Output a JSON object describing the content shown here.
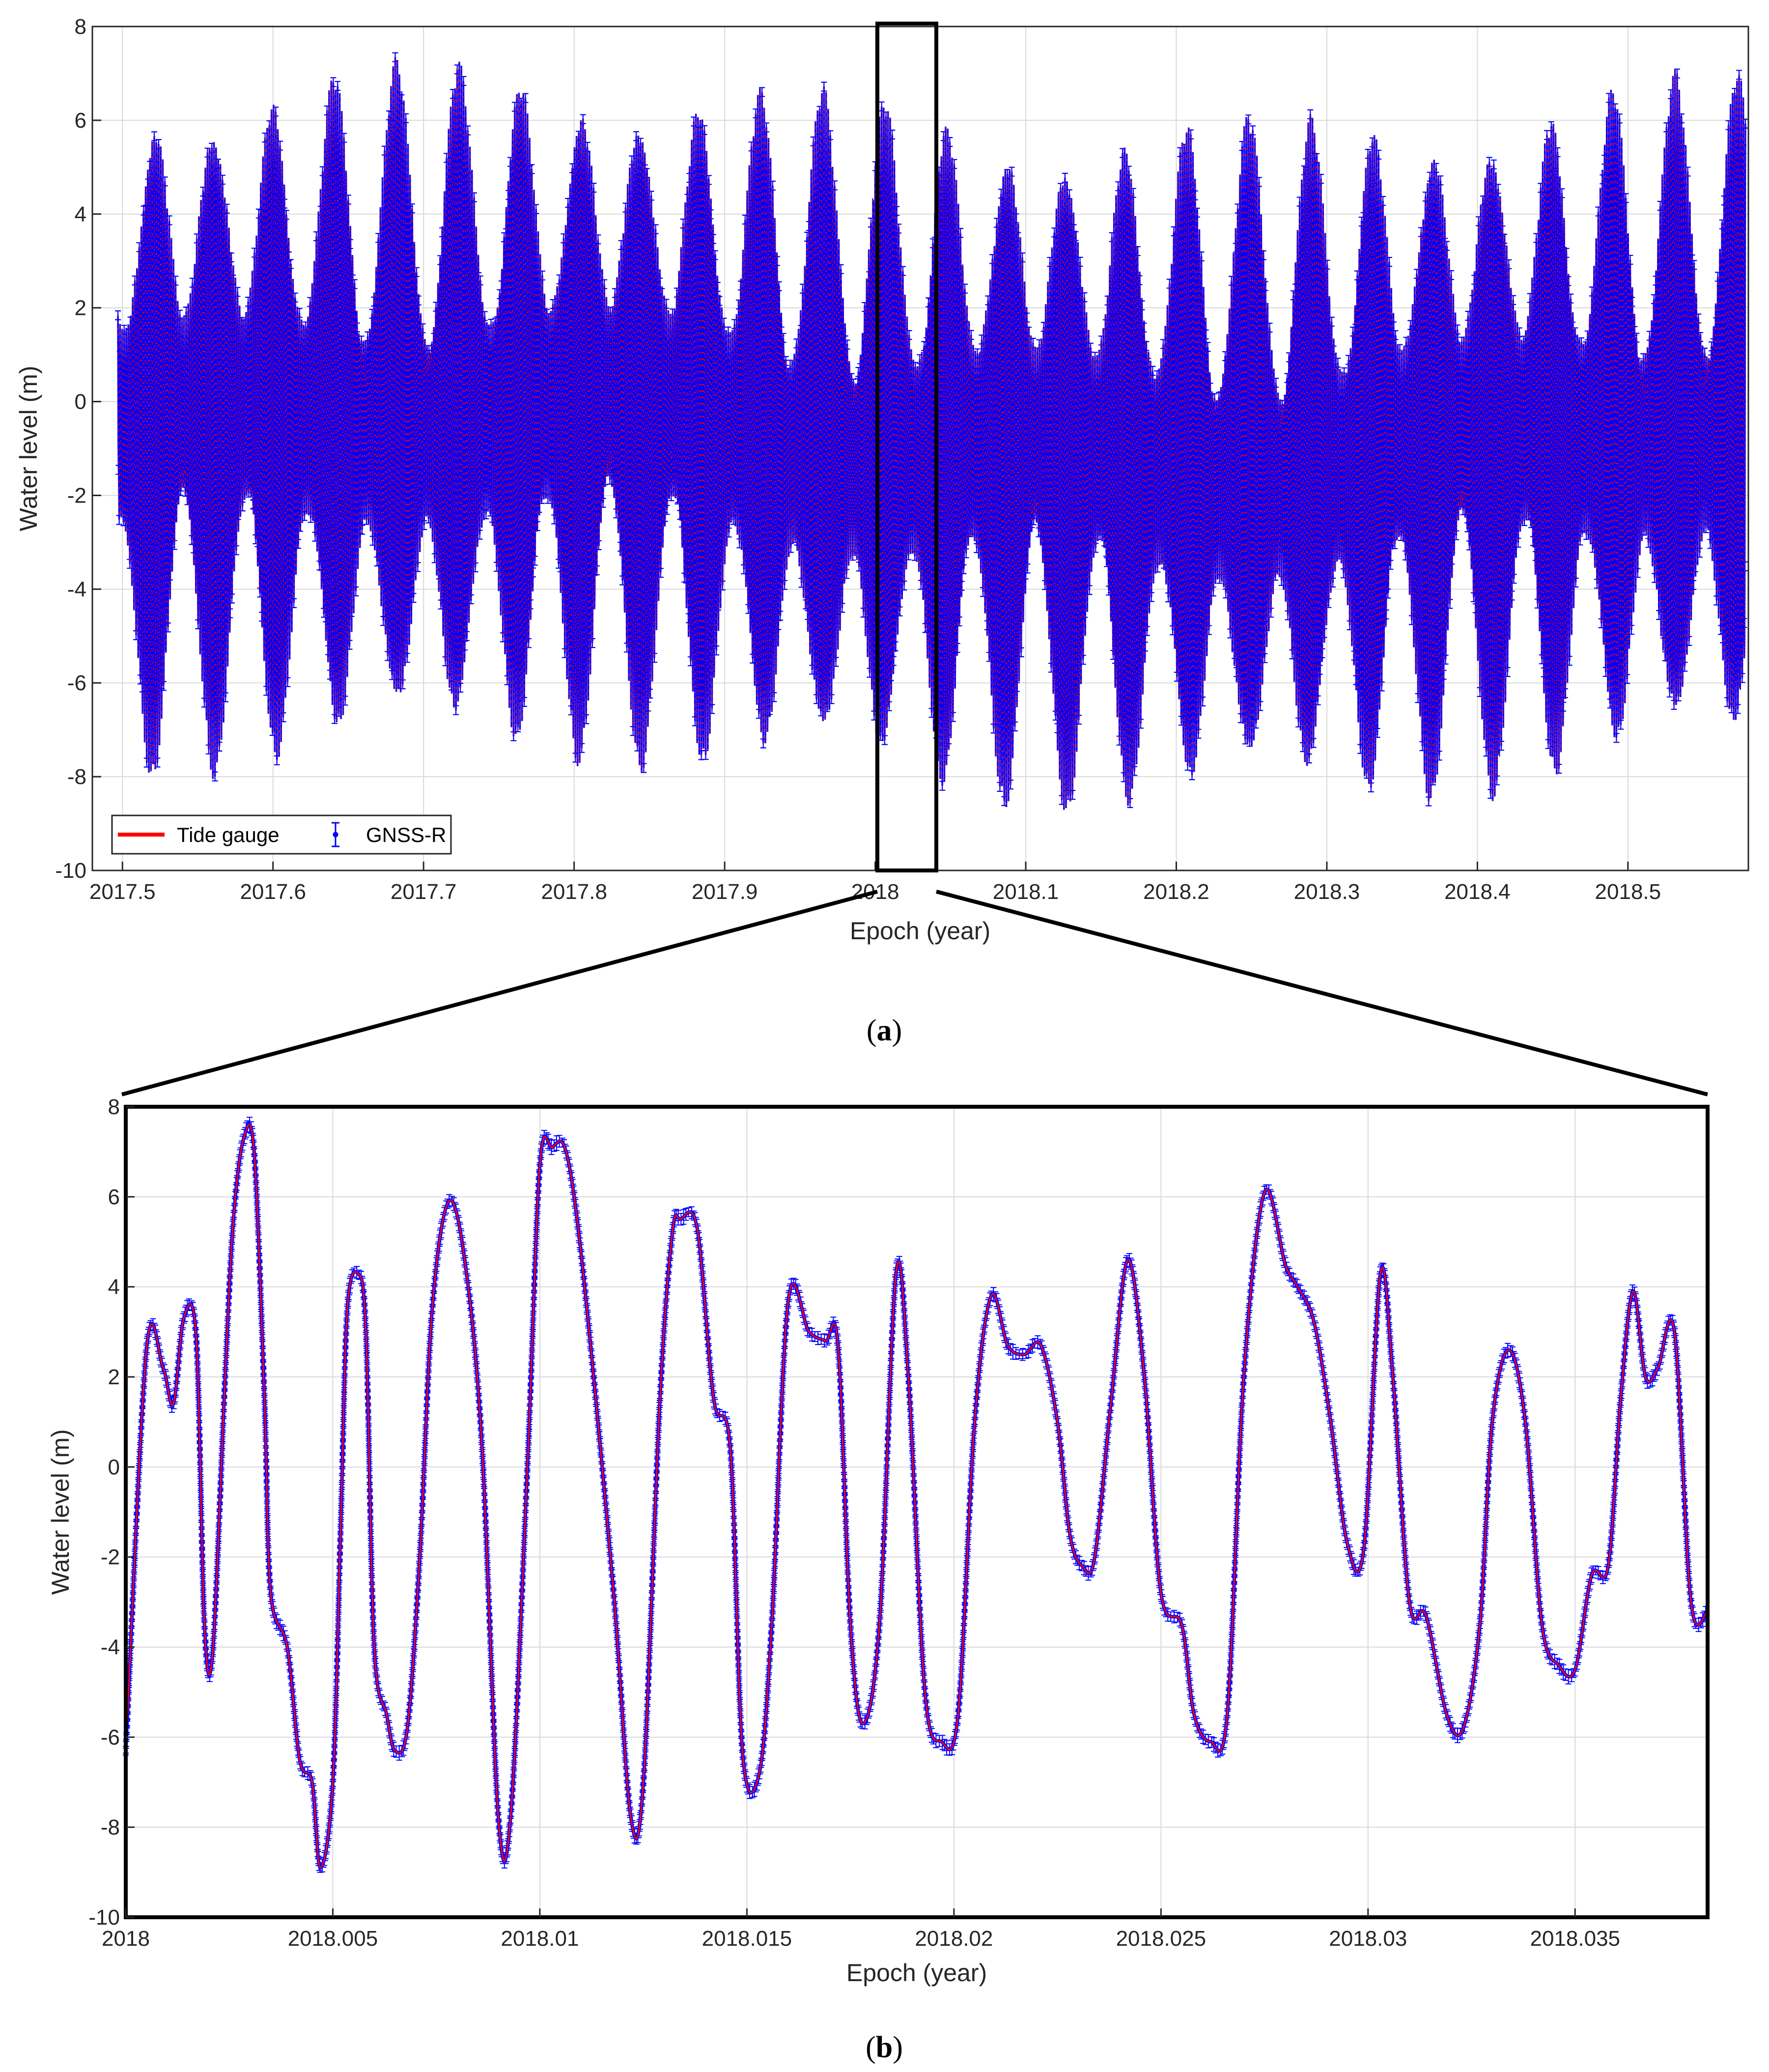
{
  "colors": {
    "tide": "#ff0000",
    "gnss": "#0000ff",
    "grid": "#d9d9d9",
    "axis": "#262626"
  },
  "chart_data": [
    {
      "id": "a",
      "type": "line",
      "panel_label": "(a)",
      "panel_letter": "a",
      "xlabel": "Epoch (year)",
      "ylabel": "Water level (m)",
      "xlim": [
        2017.48,
        2017.48,
        2018.58
      ],
      "xlim_range": [
        2017.48,
        2018.58
      ],
      "ylim": [
        -10,
        8
      ],
      "xticks": [
        2017.5,
        2017.6,
        2017.7,
        2017.8,
        2017.9,
        2018.0,
        2018.1,
        2018.2,
        2018.3,
        2018.4,
        2018.5
      ],
      "xtick_labels": [
        "2017.5",
        "2017.6",
        "2017.7",
        "2017.8",
        "2017.9",
        "2018",
        "2018.1",
        "2018.2",
        "2018.3",
        "2018.4",
        "2018.5"
      ],
      "yticks": [
        -10,
        -8,
        -6,
        -4,
        -2,
        0,
        2,
        4,
        6,
        8
      ],
      "ytick_labels": [
        "-10",
        "-8",
        "-6",
        "-4",
        "-2",
        "0",
        "2",
        "4",
        "6",
        "8"
      ],
      "grid": true,
      "legend": {
        "placement": "bottom-left",
        "entries": [
          "Tide gauge",
          "GNSS-R"
        ]
      },
      "zoom_box": {
        "x_range": [
          2018.0,
          2018.038
        ],
        "y_range": [
          -10,
          8
        ]
      },
      "series": [
        {
          "name": "Tide gauge",
          "style": "line",
          "description": "semidiurnal tide with spring-neap modulation, roughly -9.5 m to 7.3 m"
        },
        {
          "name": "GNSS-R",
          "style": "errorbar",
          "description": "retrievals with error bars closely following tide gauge"
        }
      ]
    },
    {
      "id": "b",
      "type": "line",
      "panel_label": "(b)",
      "panel_letter": "b",
      "xlabel": "Epoch (year)",
      "ylabel": "Water level (m)",
      "xlim_range": [
        2018.0,
        2018.0382
      ],
      "ylim": [
        -10,
        8
      ],
      "xticks": [
        2018.0,
        2018.005,
        2018.01,
        2018.015,
        2018.02,
        2018.025,
        2018.03,
        2018.035
      ],
      "xtick_labels": [
        "2018",
        "2018.005",
        "2018.01",
        "2018.015",
        "2018.02",
        "2018.025",
        "2018.03",
        "2018.035"
      ],
      "yticks": [
        -10,
        -8,
        -6,
        -4,
        -2,
        0,
        2,
        4,
        6,
        8
      ],
      "ytick_labels": [
        "-10",
        "-8",
        "-6",
        "-4",
        "-2",
        "0",
        "2",
        "4",
        "6",
        "8"
      ],
      "grid": true,
      "series": [
        {
          "name": "Tide gauge",
          "x": [
            2018.0,
            2018.0005,
            2018.0009,
            2018.00115,
            2018.0014,
            2018.0017,
            2018.0019,
            2018.0021,
            2018.0024,
            2018.0026,
            2018.00285,
            2018.0031,
            2018.00335,
            2018.0035,
            2018.0039,
            2018.0042,
            2018.0045,
            2018.0047,
            2018.005,
            2018.0052,
            2018.00535,
            2018.0056,
            2018.0058,
            2018.006,
            2018.0063,
            2018.0065,
            2018.0068,
            2018.0071,
            2018.0074,
            2018.0078,
            2018.0082,
            2018.0086,
            2018.009,
            2018.0093,
            2018.0097,
            2018.01,
            2018.0103,
            2018.0106,
            2018.0109,
            2018.0113,
            2018.0118,
            2018.0122,
            2018.0125,
            2018.0129,
            2018.0132,
            2018.0134,
            2018.0138,
            2018.0142,
            2018.0146,
            2018.0149,
            2018.0153,
            2018.0156,
            2018.016,
            2018.0165,
            2018.0169,
            2018.0172,
            2018.0175,
            2018.0178,
            2018.0182,
            2018.0186,
            2018.0189,
            2018.0193,
            2018.0197,
            2018.0201,
            2018.0205,
            2018.0209,
            2018.0213,
            2018.0217,
            2018.0221,
            2018.0225,
            2018.0228,
            2018.0231,
            2018.0234,
            2018.0238,
            2018.0242,
            2018.0246,
            2018.025,
            2018.0255,
            2018.0258,
            2018.0262,
            2018.0266,
            2018.027,
            2018.0275,
            2018.028,
            2018.0283,
            2018.0287,
            2018.0291,
            2018.0295,
            2018.0299,
            2018.0303,
            2018.0306,
            2018.031,
            2018.0314,
            2018.0319,
            2018.0323,
            2018.0327,
            2018.033,
            2018.0334,
            2018.0338,
            2018.0342,
            2018.0346,
            2018.035,
            2018.0354,
            2018.0358,
            2018.0361,
            2018.0364,
            2018.0367,
            2018.037,
            2018.0374,
            2018.0378,
            2018.0382
          ],
          "y": [
            -6.3,
            2.6,
            2.2,
            1.4,
            3.3,
            2.9,
            -3.5,
            -4.1,
            2.0,
            5.5,
            7.3,
            7.0,
            1.5,
            -2.8,
            -4.0,
            -6.5,
            -7.0,
            -8.9,
            -7.0,
            -1.0,
            3.5,
            4.3,
            3.0,
            -4.0,
            -5.5,
            -6.3,
            -5.8,
            -2.0,
            3.5,
            5.9,
            4.5,
            0.5,
            -7.8,
            -7.7,
            0.0,
            6.7,
            7.1,
            7.1,
            5.5,
            2.0,
            -3.0,
            -7.8,
            -7.0,
            1.5,
            5.2,
            5.5,
            5.3,
            1.5,
            0.4,
            -6.4,
            -6.8,
            -3.5,
            3.7,
            3.0,
            2.8,
            2.7,
            -3.5,
            -5.7,
            -3.5,
            4.3,
            2.0,
            -5.0,
            -6.1,
            -5.5,
            1.0,
            3.8,
            2.7,
            2.5,
            2.7,
            1.0,
            -1.5,
            -2.2,
            -2.0,
            1.5,
            4.6,
            2.0,
            -2.8,
            -3.5,
            -5.5,
            -6.1,
            -5.5,
            2.0,
            6.1,
            4.5,
            4.0,
            3.2,
            1.0,
            -1.7,
            -1.8,
            4.3,
            2.0,
            -3.0,
            -3.3,
            -5.5,
            -5.8,
            -3.5,
            1.0,
            2.6,
            1.0,
            -3.5,
            -4.4,
            -4.5,
            -2.4,
            -2.2,
            1.5,
            3.9,
            2.0,
            2.2,
            3.0,
            -3.0,
            -3.2
          ]
        },
        {
          "name": "GNSS-R",
          "style": "errorbar"
        }
      ]
    }
  ]
}
